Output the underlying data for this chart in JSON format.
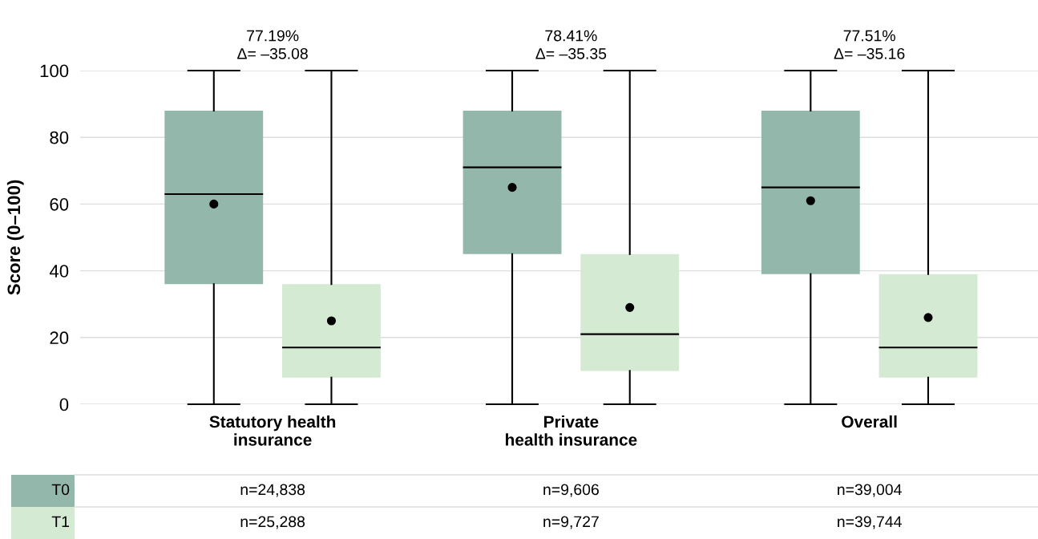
{
  "chart_data": {
    "type": "box",
    "ylabel": "Score (0–100)",
    "categories": [
      "Statutory health\ninsurance",
      "Private\nhealth insurance",
      "Overall"
    ],
    "series": [
      {
        "name": "T0",
        "color": "#93b8ab",
        "boxes": [
          {
            "low": 0,
            "q1": 36,
            "median": 63,
            "q3": 88,
            "high": 100,
            "mean": 60
          },
          {
            "low": 0,
            "q1": 45,
            "median": 71,
            "q3": 88,
            "high": 100,
            "mean": 65
          },
          {
            "low": 0,
            "q1": 39,
            "median": 65,
            "q3": 88,
            "high": 100,
            "mean": 61
          }
        ]
      },
      {
        "name": "T1",
        "color": "#d5ead3",
        "boxes": [
          {
            "low": 0,
            "q1": 8,
            "median": 17,
            "q3": 36,
            "high": 100,
            "mean": 25
          },
          {
            "low": 0,
            "q1": 10,
            "median": 21,
            "q3": 45,
            "high": 100,
            "mean": 29
          },
          {
            "low": 0,
            "q1": 8,
            "median": 17,
            "q3": 39,
            "high": 100,
            "mean": 26
          }
        ]
      }
    ],
    "ylim": [
      0,
      100
    ],
    "yticks": [
      0,
      20,
      40,
      60,
      80,
      100
    ],
    "grid": "y",
    "marker": "circle",
    "annotations": [
      "77.19%\nΔ= –35.08",
      "78.41%\nΔ= –35.35",
      "77.51%\nΔ= –35.16",
      "n=24,838",
      "n=9,606",
      "n=39,004",
      "n=25,288",
      "n=9,727",
      "n=39,744"
    ]
  }
}
